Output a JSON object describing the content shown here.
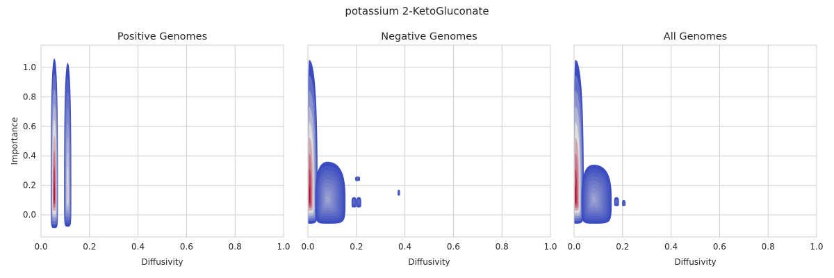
{
  "suptitle": "potassium 2-KetoGluconate",
  "colors": {
    "background": "#ffffff",
    "grid": "#cccccc",
    "text": "#262626",
    "density_low": "#3b4cc0",
    "density_mid": "#dddcdc",
    "density_high": "#b40426"
  },
  "chart_data": [
    {
      "type": "kde-contour",
      "title": "Positive Genomes",
      "xlabel": "Diffusivity",
      "ylabel": "Importance",
      "xlim": [
        0,
        1
      ],
      "ylim": [
        -0.15,
        1.15
      ],
      "xticks": [
        "0.0",
        "0.2",
        "0.4",
        "0.6",
        "0.8",
        "1.0"
      ],
      "yticks": [
        "0.0",
        "0.2",
        "0.4",
        "0.6",
        "0.8",
        "1.0"
      ],
      "grid": true,
      "colormap": "coolwarm",
      "blobs": [
        {
          "x": 0.055,
          "y": 0.12,
          "xmin": 0.04,
          "xmax": 0.07,
          "ymin": -0.09,
          "ymax": 1.06,
          "peak": 1.0
        },
        {
          "x": 0.11,
          "y": 0.12,
          "xmin": 0.095,
          "xmax": 0.125,
          "ymin": -0.08,
          "ymax": 1.03,
          "peak": 0.55
        }
      ]
    },
    {
      "type": "kde-contour",
      "title": "Negative Genomes",
      "xlabel": "Diffusivity",
      "ylabel": "",
      "xlim": [
        0,
        1
      ],
      "ylim": [
        -0.15,
        1.15
      ],
      "xticks": [
        "0.0",
        "0.2",
        "0.4",
        "0.6",
        "0.8",
        "1.0"
      ],
      "yticks": [],
      "grid": true,
      "colormap": "coolwarm",
      "blobs": [
        {
          "x": 0.005,
          "y": 0.1,
          "xmin": 0.0,
          "xmax": 0.04,
          "ymin": -0.06,
          "ymax": 1.05,
          "peak": 1.0
        },
        {
          "x": 0.08,
          "y": 0.1,
          "xmin": 0.03,
          "xmax": 0.155,
          "ymin": -0.06,
          "ymax": 0.36,
          "peak": 0.3
        },
        {
          "x": 0.19,
          "y": 0.09,
          "xmin": 0.18,
          "xmax": 0.2,
          "ymin": 0.05,
          "ymax": 0.12,
          "peak": 0.12
        },
        {
          "x": 0.21,
          "y": 0.09,
          "xmin": 0.2,
          "xmax": 0.22,
          "ymin": 0.05,
          "ymax": 0.12,
          "peak": 0.12
        },
        {
          "x": 0.205,
          "y": 0.25,
          "xmin": 0.195,
          "xmax": 0.215,
          "ymin": 0.23,
          "ymax": 0.26,
          "peak": 0.1
        },
        {
          "x": 0.375,
          "y": 0.15,
          "xmin": 0.37,
          "xmax": 0.38,
          "ymin": 0.13,
          "ymax": 0.17,
          "peak": 0.1
        }
      ]
    },
    {
      "type": "kde-contour",
      "title": "All Genomes",
      "xlabel": "Diffusivity",
      "ylabel": "",
      "xlim": [
        0,
        1
      ],
      "ylim": [
        -0.15,
        1.15
      ],
      "xticks": [
        "0.0",
        "0.2",
        "0.4",
        "0.6",
        "0.8",
        "1.0"
      ],
      "yticks": [],
      "grid": true,
      "colormap": "coolwarm",
      "blobs": [
        {
          "x": 0.005,
          "y": 0.1,
          "xmin": 0.0,
          "xmax": 0.04,
          "ymin": -0.06,
          "ymax": 1.05,
          "peak": 1.0
        },
        {
          "x": 0.08,
          "y": 0.1,
          "xmin": 0.03,
          "xmax": 0.155,
          "ymin": -0.06,
          "ymax": 0.34,
          "peak": 0.3
        },
        {
          "x": 0.175,
          "y": 0.09,
          "xmin": 0.165,
          "xmax": 0.185,
          "ymin": 0.06,
          "ymax": 0.12,
          "peak": 0.12
        },
        {
          "x": 0.205,
          "y": 0.08,
          "xmin": 0.198,
          "xmax": 0.212,
          "ymin": 0.06,
          "ymax": 0.1,
          "peak": 0.1
        }
      ]
    }
  ]
}
